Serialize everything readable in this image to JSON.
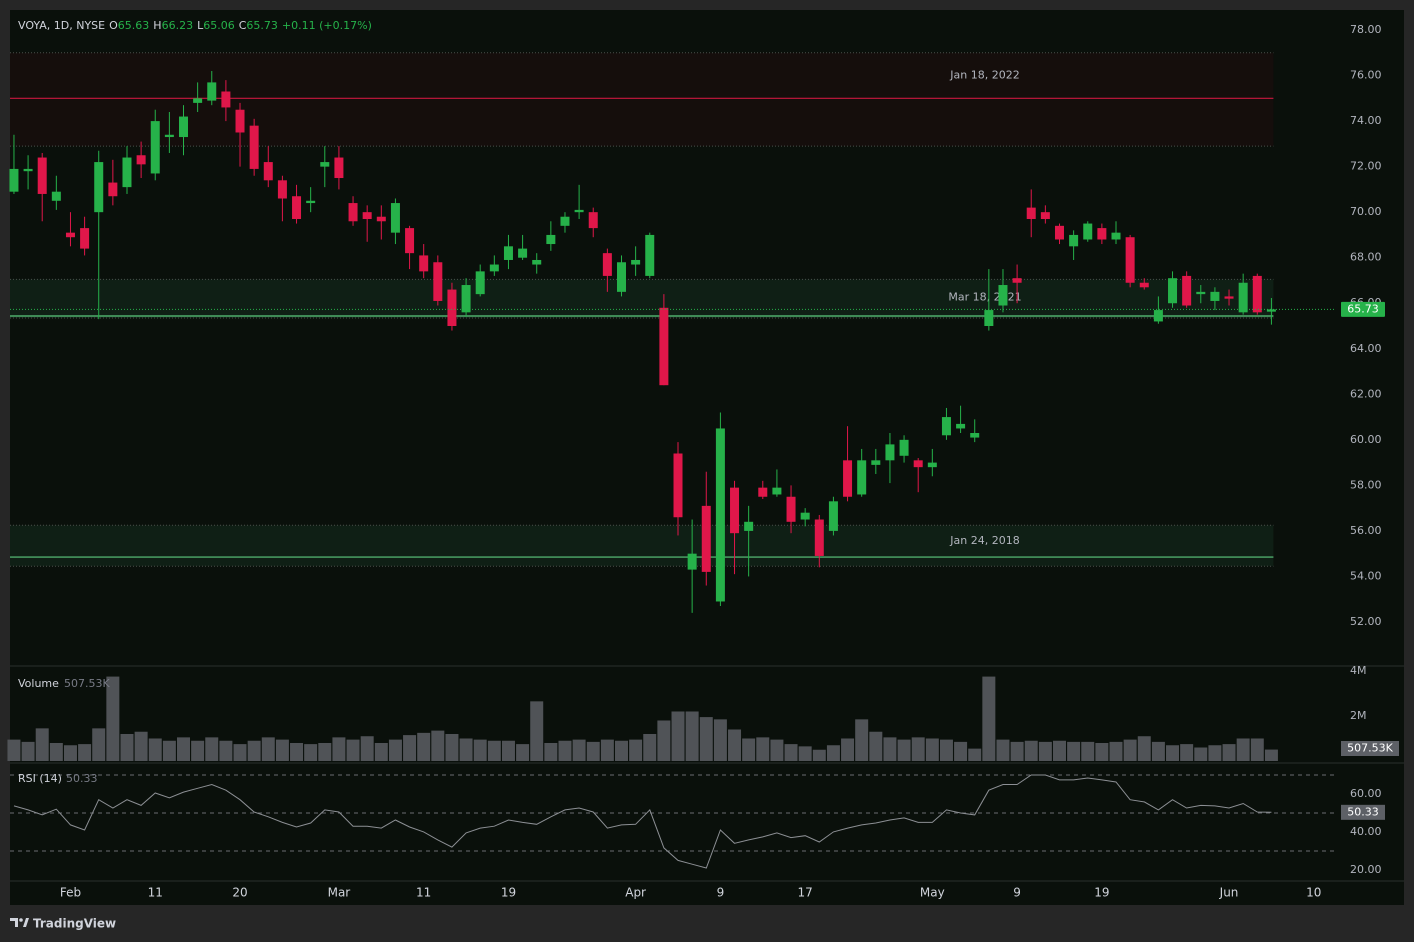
{
  "chart_data": {
    "type": "candlestick",
    "header": {
      "symbol": "VOYA, 1D, NYSE",
      "ohlc": [
        {
          "label": "O",
          "value": 65.63
        },
        {
          "label": "H",
          "value": 66.23
        },
        {
          "label": "L",
          "value": 65.06
        },
        {
          "label": "C",
          "value": 65.73
        }
      ],
      "change": "+0.11 (+0.17%)"
    },
    "up_color": "#26b24a",
    "down_color": "#e0174a",
    "open": [
      70.9,
      71.8,
      72.4,
      70.5,
      69.1,
      69.3,
      70.0,
      71.3,
      71.1,
      72.5,
      71.7,
      73.3,
      73.3,
      74.8,
      74.9,
      75.3,
      74.5,
      73.8,
      72.2,
      71.4,
      70.7,
      70.4,
      72.0,
      72.4,
      70.4,
      70.0,
      69.8,
      69.1,
      69.3,
      68.1,
      67.8,
      66.6,
      65.6,
      66.4,
      67.4,
      67.9,
      68.0,
      67.7,
      68.6,
      69.4,
      70.0,
      70.0,
      68.2,
      66.5,
      67.7,
      67.2,
      65.8,
      59.4,
      54.3,
      57.1,
      52.9,
      57.9,
      56.0,
      57.9,
      57.6,
      57.5,
      56.5,
      56.5,
      56.0,
      59.1,
      57.6,
      58.9,
      59.1,
      59.3,
      59.1,
      58.8,
      60.2,
      60.5,
      60.1,
      65.0,
      65.9,
      67.1,
      70.2,
      70.0,
      69.4,
      68.5,
      68.8,
      69.3,
      68.8,
      68.9,
      66.9,
      65.2,
      66.0,
      67.2,
      66.4,
      66.1,
      66.3,
      65.6,
      67.2,
      65.63
    ],
    "high": [
      73.4,
      72.5,
      72.6,
      71.6,
      70.0,
      69.8,
      72.7,
      72.3,
      72.9,
      73.1,
      74.5,
      74.4,
      74.7,
      75.7,
      76.2,
      75.8,
      74.8,
      74.1,
      72.9,
      71.6,
      71.2,
      71.1,
      72.9,
      72.9,
      70.7,
      70.3,
      70.3,
      70.6,
      69.4,
      68.6,
      68.1,
      66.9,
      67.1,
      67.7,
      68.1,
      69.0,
      69.0,
      68.2,
      69.6,
      70.0,
      71.2,
      70.2,
      68.4,
      68.1,
      68.5,
      69.1,
      66.4,
      59.9,
      56.5,
      58.6,
      61.2,
      58.2,
      57.1,
      58.2,
      58.7,
      58.0,
      57.0,
      56.7,
      57.5,
      60.6,
      59.6,
      59.6,
      60.3,
      60.2,
      59.2,
      59.6,
      61.4,
      61.5,
      60.9,
      67.5,
      67.5,
      67.7,
      71.0,
      70.3,
      69.5,
      69.2,
      69.6,
      69.5,
      69.6,
      69.0,
      67.1,
      66.3,
      67.4,
      67.4,
      66.8,
      66.7,
      66.6,
      67.3,
      67.3,
      66.23
    ],
    "low": [
      70.8,
      71.0,
      69.6,
      70.1,
      68.5,
      68.1,
      65.3,
      70.3,
      70.8,
      71.5,
      71.4,
      72.6,
      72.5,
      74.4,
      74.7,
      74.0,
      72.0,
      71.6,
      71.1,
      69.6,
      69.5,
      70.0,
      71.1,
      71.0,
      69.4,
      68.7,
      68.8,
      68.6,
      67.5,
      67.1,
      65.9,
      64.8,
      65.4,
      66.3,
      67.2,
      67.5,
      67.9,
      67.3,
      68.3,
      69.1,
      69.7,
      68.9,
      66.5,
      66.3,
      67.2,
      67.1,
      62.4,
      55.8,
      52.4,
      53.6,
      52.7,
      54.1,
      54.0,
      57.4,
      57.5,
      55.9,
      56.2,
      54.4,
      55.8,
      57.3,
      57.5,
      58.5,
      58.1,
      59.0,
      57.7,
      58.4,
      60.0,
      60.3,
      59.9,
      64.8,
      65.6,
      66.0,
      68.9,
      69.5,
      68.6,
      67.9,
      68.7,
      68.6,
      68.6,
      66.7,
      66.6,
      65.1,
      65.8,
      65.8,
      66.0,
      65.7,
      65.9,
      65.5,
      65.5,
      65.06
    ],
    "close": [
      71.9,
      71.9,
      70.8,
      70.9,
      68.9,
      68.4,
      72.2,
      70.7,
      72.4,
      72.1,
      74.0,
      73.4,
      74.2,
      75.0,
      75.7,
      74.6,
      73.5,
      71.9,
      71.4,
      70.6,
      69.7,
      70.5,
      72.2,
      71.5,
      69.6,
      69.7,
      69.6,
      70.4,
      68.2,
      67.4,
      66.1,
      65.0,
      66.8,
      67.4,
      67.7,
      68.5,
      68.4,
      67.9,
      69.0,
      69.8,
      70.1,
      69.3,
      67.2,
      67.8,
      67.9,
      69.0,
      62.4,
      56.6,
      55.0,
      54.2,
      60.5,
      55.9,
      56.4,
      57.5,
      57.9,
      56.4,
      56.8,
      54.9,
      57.3,
      57.5,
      59.1,
      59.1,
      59.8,
      60.0,
      58.8,
      59.0,
      61.0,
      60.7,
      60.3,
      65.7,
      66.8,
      66.9,
      69.7,
      69.7,
      68.8,
      69.0,
      69.5,
      68.8,
      69.1,
      66.9,
      66.7,
      65.7,
      67.1,
      65.9,
      66.5,
      66.5,
      66.2,
      66.9,
      65.6,
      65.73
    ],
    "last_price": 65.73,
    "ylim": [
      50.11,
      78.88
    ],
    "yticks": [
      {
        "value": 52,
        "label": "52.00"
      },
      {
        "value": 54,
        "label": "54.00"
      },
      {
        "value": 56,
        "label": "56.00"
      },
      {
        "value": 58,
        "label": "58.00"
      },
      {
        "value": 60,
        "label": "60.00"
      },
      {
        "value": 62,
        "label": "62.00"
      },
      {
        "value": 64,
        "label": "64.00"
      },
      {
        "value": 66,
        "label": "66.00"
      },
      {
        "value": 68,
        "label": "68.00"
      },
      {
        "value": 70,
        "label": "70.00"
      },
      {
        "value": 72,
        "label": "72.00"
      },
      {
        "value": 74,
        "label": "74.00"
      },
      {
        "value": 76,
        "label": "76.00"
      },
      {
        "value": 78,
        "label": "78.00"
      }
    ],
    "xlim": [
      -0.28,
      93.5
    ],
    "xticks": [
      {
        "value": 4,
        "label": "Feb"
      },
      {
        "value": 10,
        "label": "11"
      },
      {
        "value": 16,
        "label": "20"
      },
      {
        "value": 23,
        "label": "Mar"
      },
      {
        "value": 29,
        "label": "11"
      },
      {
        "value": 35,
        "label": "19"
      },
      {
        "value": 44,
        "label": "Apr"
      },
      {
        "value": 50,
        "label": "9"
      },
      {
        "value": 56,
        "label": "17"
      },
      {
        "value": 65,
        "label": "May"
      },
      {
        "value": 71,
        "label": "9"
      },
      {
        "value": 77,
        "label": "19"
      },
      {
        "value": 86,
        "label": "Jun"
      },
      {
        "value": 92,
        "label": "10"
      }
    ],
    "zones": [
      {
        "label": "Jan 18, 2022",
        "top": 77.0,
        "level": 75.0,
        "bottom": 72.9,
        "color": "#c8173f",
        "fill": "#150e0c"
      },
      {
        "label": "Mar 18, 2021",
        "top": 67.05,
        "level": 65.44,
        "bottom": 65.35,
        "color": "#5cc97e",
        "fill": "#0f1f15"
      },
      {
        "label": "Jan 24, 2018",
        "top": 56.25,
        "level": 54.85,
        "bottom": 54.45,
        "color": "#5cc97e",
        "fill": "#0f1f15"
      }
    ],
    "volume": {
      "title": "Volume",
      "current": {
        "value": 0.50753,
        "label": "507.53K"
      },
      "color": "#505357",
      "values": [
        0.95,
        0.85,
        1.45,
        0.8,
        0.7,
        0.75,
        1.45,
        3.75,
        1.2,
        1.3,
        1.0,
        0.9,
        1.05,
        0.9,
        1.05,
        0.9,
        0.75,
        0.9,
        1.05,
        0.95,
        0.8,
        0.75,
        0.8,
        1.05,
        0.95,
        1.1,
        0.8,
        0.95,
        1.15,
        1.25,
        1.35,
        1.2,
        1.0,
        0.95,
        0.9,
        0.9,
        0.75,
        2.65,
        0.8,
        0.9,
        0.95,
        0.85,
        0.95,
        0.9,
        0.95,
        1.2,
        1.8,
        2.2,
        2.2,
        1.95,
        1.85,
        1.4,
        1.0,
        1.05,
        0.95,
        0.75,
        0.65,
        0.5,
        0.7,
        1.0,
        1.85,
        1.3,
        1.05,
        0.95,
        1.05,
        1.0,
        0.95,
        0.85,
        0.55,
        3.75,
        0.95,
        0.85,
        0.9,
        0.85,
        0.9,
        0.85,
        0.85,
        0.8,
        0.85,
        0.95,
        1.1,
        0.85,
        0.7,
        0.75,
        0.6,
        0.7,
        0.75,
        1.0,
        1.0,
        0.50753
      ],
      "ylim": [
        0,
        4.22
      ],
      "yticks": [
        {
          "value": 2,
          "label": "2M"
        },
        {
          "value": 4,
          "label": "4M"
        }
      ]
    },
    "rsi": {
      "title": "RSI (14)",
      "current": 50.33,
      "color": "#8c8f94",
      "values": [
        53.7,
        51.6,
        49,
        52,
        43.7,
        41,
        57,
        52.6,
        57,
        54,
        60.5,
        58,
        61,
        63,
        65,
        62,
        57,
        50.5,
        48,
        45,
        42.6,
        44.7,
        51.6,
        50.5,
        43,
        43,
        42,
        46.3,
        42.6,
        40,
        35.8,
        32,
        39.5,
        42,
        43,
        46.3,
        45,
        44,
        48,
        51.6,
        52.6,
        50.5,
        42,
        43.7,
        44,
        51.6,
        31.6,
        25,
        23,
        21,
        41,
        34,
        35.8,
        37.4,
        39.5,
        37,
        38,
        34.7,
        40,
        42,
        43.7,
        44.7,
        46.3,
        47.4,
        45,
        45,
        51.6,
        50,
        49,
        62,
        65,
        65,
        70,
        70,
        67.4,
        67.4,
        68.4,
        67.4,
        66.3,
        57,
        55.8,
        51.6,
        57,
        52.6,
        54,
        53.7,
        52.6,
        55,
        50.5,
        50.33
      ],
      "bands": [
        70,
        50,
        30
      ],
      "ylim": [
        14.7,
        76.3
      ],
      "yticks": [
        {
          "value": 20,
          "label": "20.00"
        },
        {
          "value": 40,
          "label": "40.00"
        },
        {
          "value": 60,
          "label": "60.00"
        }
      ]
    }
  },
  "brand": "TradingView"
}
